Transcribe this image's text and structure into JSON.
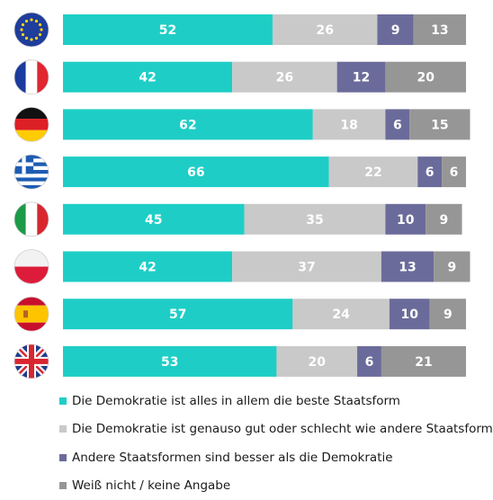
{
  "colors": {
    "beste": "#1ecec6",
    "genauso": "#c9c9c9",
    "andere": "#6b6b9b",
    "weiss": "#969696"
  },
  "chart_data": {
    "type": "bar",
    "orientation": "horizontal",
    "stacked": true,
    "categories": [
      "EU",
      "Frankreich",
      "Deutschland",
      "Griechenland",
      "Italien",
      "Polen",
      "Spanien",
      "Vereinigtes Königreich"
    ],
    "category_icons": [
      "eu-flag-icon",
      "france-flag-icon",
      "germany-flag-icon",
      "greece-flag-icon",
      "italy-flag-icon",
      "poland-flag-icon",
      "spain-flag-icon",
      "uk-flag-icon"
    ],
    "series": [
      {
        "key": "beste",
        "name": "Die Demokratie ist alles in allem die beste Staatsform",
        "values": [
          52,
          42,
          62,
          66,
          45,
          42,
          57,
          53
        ]
      },
      {
        "key": "genauso",
        "name": "Die Demokratie ist genauso gut oder schlecht wie andere Staatsformen",
        "values": [
          26,
          26,
          18,
          22,
          35,
          37,
          24,
          20
        ]
      },
      {
        "key": "andere",
        "name": "Andere Staatsformen sind besser als die Demokratie",
        "values": [
          9,
          12,
          6,
          6,
          10,
          13,
          10,
          6
        ]
      },
      {
        "key": "weiss",
        "name": "Weiß nicht / keine Angabe",
        "values": [
          13,
          20,
          15,
          6,
          9,
          9,
          9,
          21
        ]
      }
    ],
    "xlim": [
      0,
      100
    ],
    "grid": false,
    "legend_position": "bottom"
  }
}
